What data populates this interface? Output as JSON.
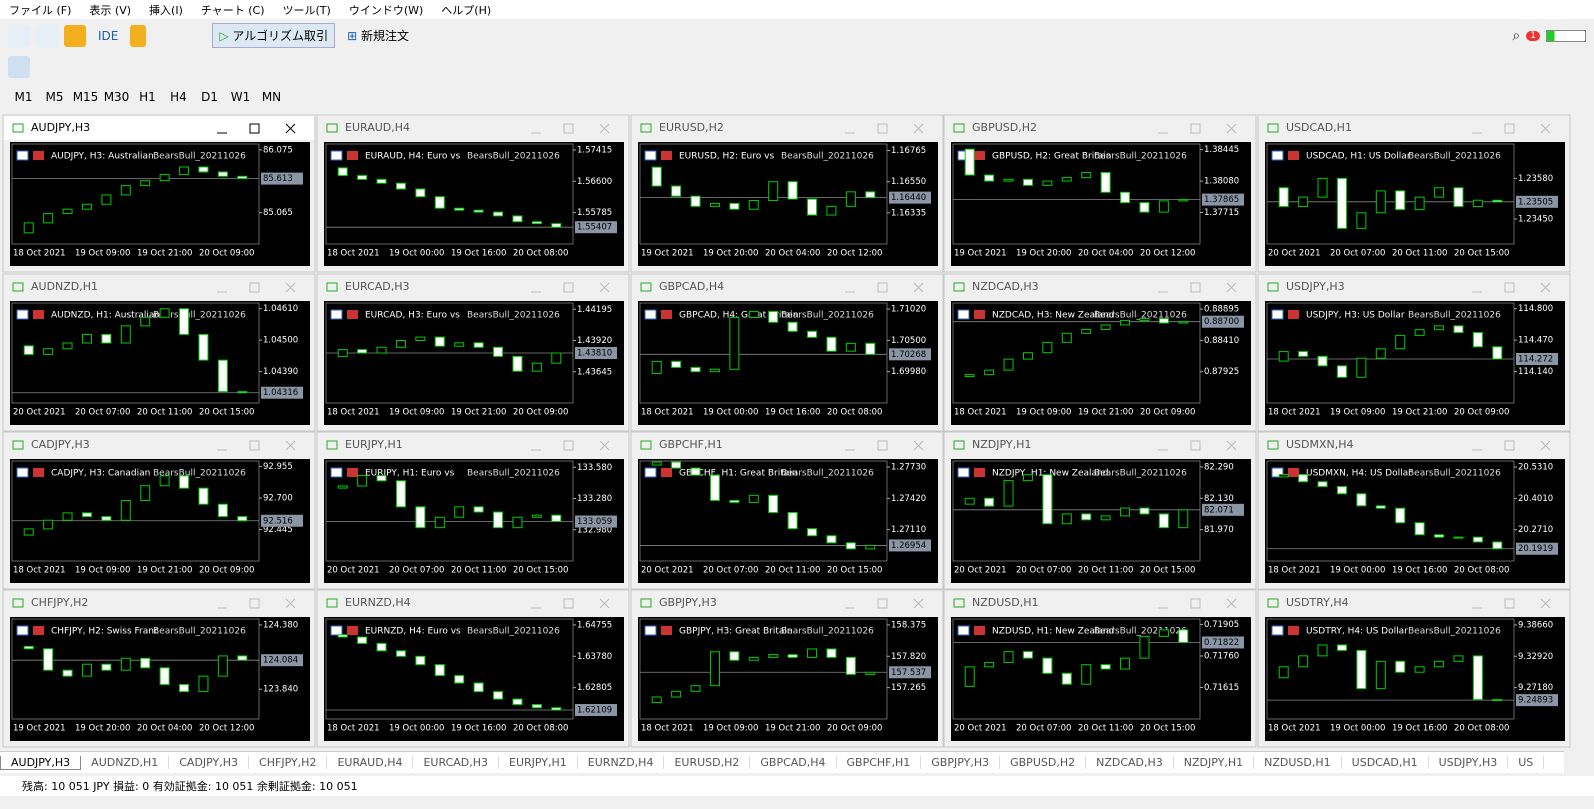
{
  "menu": [
    "ファイル (F)",
    "表示 (V)",
    "挿入(I)",
    "チャート (C)",
    "ツール(T)",
    "ウインドウ(W)",
    "ヘルプ(H)"
  ],
  "toolbar": {
    "ide": "IDE",
    "algo": "アルゴリズム取引",
    "order": "新規注文",
    "badge": "1"
  },
  "timeframes": [
    "M1",
    "M5",
    "M15",
    "M30",
    "H1",
    "H4",
    "D1",
    "W1",
    "MN"
  ],
  "indicator": "BearsBull_20211026",
  "windows": [
    {
      "title": "AUDJPY,H3",
      "desc": "AUDJPY, H3:  Australian",
      "ylim": [
        84.56,
        86.17
      ],
      "yticks": [
        86.075,
        85.065
      ],
      "price": 85.613,
      "xlabels": [
        "18 Oct 2021",
        "19 Oct 09:00",
        "19 Oct 21:00",
        "20 Oct 09:00"
      ],
      "values": [
        84.74,
        84.9,
        85.05,
        85.12,
        85.2,
        85.35,
        85.5,
        85.58,
        85.68,
        85.8,
        85.72,
        85.65,
        85.613
      ]
    },
    {
      "title": "EURAUD,H4",
      "desc": "EURAUD, H4:  Euro vs",
      "ylim": [
        1.5497,
        1.5757
      ],
      "yticks": [
        1.57415,
        {
          "value": 1.566,
          "label": "1.56600"
        },
        1.55785
      ],
      "price": 1.55407,
      "xlabels": [
        "18 Oct 2021",
        "19 Oct 00:00",
        "19 Oct 16:00",
        "20 Oct 08:00"
      ],
      "values": [
        1.5695,
        1.5675,
        1.5665,
        1.5655,
        1.564,
        1.562,
        1.559,
        1.5585,
        1.558,
        1.557,
        1.5555,
        1.555,
        1.55407
      ]
    },
    {
      "title": "EURUSD,H2",
      "desc": "EURUSD, H2:  Euro vs",
      "ylim": [
        1.1612,
        1.1681
      ],
      "yticks": [
        1.16765,
        {
          "value": 1.1655,
          "label": "1.16550"
        },
        1.16335
      ],
      "price": {
        "value": 1.1644,
        "label": "1.16440"
      },
      "xlabels": [
        "19 Oct 2021",
        "19 Oct 20:00",
        "20 Oct 04:00",
        "20 Oct 12:00"
      ],
      "values": [
        1.1665,
        1.1652,
        1.1645,
        1.1638,
        1.164,
        1.1636,
        1.1642,
        1.1655,
        1.1643,
        1.1632,
        1.1638,
        1.1648,
        1.1644
      ]
    },
    {
      "title": "GBPUSD,H2",
      "desc": "GBPUSD, H2:  Great Britain",
      "ylim": [
        1.3735,
        1.3851
      ],
      "yticks": [
        1.38445,
        {
          "value": 1.3808,
          "label": "1.38080"
        },
        1.37715
      ],
      "price": 1.37865,
      "xlabels": [
        "19 Oct 2021",
        "19 Oct 20:00",
        "20 Oct 04:00",
        "20 Oct 12:00"
      ],
      "values": [
        1.3845,
        1.3815,
        1.3808,
        1.381,
        1.3803,
        1.3808,
        1.3812,
        1.3818,
        1.3795,
        1.3783,
        1.3772,
        1.3785,
        1.37865
      ]
    },
    {
      "title": "USDCAD,H1",
      "desc": "USDCAD, H1:  US Dollar",
      "ylim": [
        1.2337,
        1.2369
      ],
      "yticks": [
        {
          "value": 1.2358,
          "label": "1.23580"
        },
        {
          "value": 1.2345,
          "label": "1.23450"
        }
      ],
      "price": 1.23505,
      "xlabels": [
        "20 Oct 2021",
        "20 Oct 07:00",
        "20 Oct 11:00",
        "20 Oct 15:00"
      ],
      "values": [
        1.2355,
        1.2349,
        1.2352,
        1.2358,
        1.2342,
        1.2347,
        1.2354,
        1.2348,
        1.2352,
        1.2355,
        1.2349,
        1.2351,
        1.23505
      ]
    },
    {
      "title": "AUDNZD,H1",
      "desc": "AUDNZD, H1:  Australian",
      "ylim": [
        1.0428,
        1.0463
      ],
      "yticks": [
        {
          "value": 1.0461,
          "label": "1.04610"
        },
        {
          "value": 1.045,
          "label": "1.04500"
        },
        {
          "value": 1.0439,
          "label": "1.04390"
        }
      ],
      "price": 1.04316,
      "xlabels": [
        "20 Oct 2021",
        "20 Oct 07:00",
        "20 Oct 11:00",
        "20 Oct 15:00"
      ],
      "values": [
        1.0448,
        1.0445,
        1.0447,
        1.0449,
        1.0452,
        1.0449,
        1.0455,
        1.0458,
        1.0461,
        1.0452,
        1.0443,
        1.0432,
        1.04316
      ]
    },
    {
      "title": "EURCAD,H3",
      "desc": "EURCAD, H3:  Euro vs",
      "ylim": [
        1.4337,
        1.4425
      ],
      "yticks": [
        1.44195,
        {
          "value": 1.4392,
          "label": "1.43920"
        },
        1.43645
      ],
      "price": {
        "value": 1.4381,
        "label": "1.43810"
      },
      "xlabels": [
        "18 Oct 2021",
        "19 Oct 09:00",
        "19 Oct 21:00",
        "20 Oct 09:00"
      ],
      "values": [
        1.4378,
        1.4384,
        1.4381,
        1.4386,
        1.4392,
        1.4395,
        1.4387,
        1.439,
        1.4386,
        1.4378,
        1.4365,
        1.4372,
        1.4381
      ]
    },
    {
      "title": "GBPCAD,H4",
      "desc": "GBPCAD, H4:  Great Britain",
      "ylim": [
        1.6946,
        1.7112
      ],
      "yticks": [
        {
          "value": 1.7102,
          "label": "1.71020"
        },
        {
          "value": 1.705,
          "label": "1.70500"
        },
        {
          "value": 1.6998,
          "label": "1.69980"
        }
      ],
      "price": 1.70268,
      "xlabels": [
        "18 Oct 2021",
        "19 Oct 00:00",
        "19 Oct 16:00",
        "20 Oct 08:00"
      ],
      "values": [
        1.6995,
        1.7015,
        1.7005,
        1.6998,
        1.7002,
        1.7088,
        1.7098,
        1.708,
        1.7065,
        1.7055,
        1.7032,
        1.7045,
        1.70268
      ]
    },
    {
      "title": "NZDCAD,H3",
      "desc": "NZDCAD, H3:  New Zealand",
      "ylim": [
        0.8744,
        0.8899
      ],
      "yticks": [
        0.88895,
        {
          "value": 0.8841,
          "label": "0.88410"
        },
        0.87925
      ],
      "price": {
        "value": 0.887,
        "label": "0.88700"
      },
      "xlabels": [
        "18 Oct 2021",
        "19 Oct 09:00",
        "19 Oct 21:00",
        "20 Oct 09:00"
      ],
      "values": [
        0.8785,
        0.8788,
        0.8795,
        0.8812,
        0.8822,
        0.8838,
        0.8852,
        0.8858,
        0.8865,
        0.8872,
        0.8875,
        0.8868,
        0.887
      ]
    },
    {
      "title": "USDJPY,H3",
      "desc": "USDJPY, H3:  US Dollar",
      "ylim": [
        113.81,
        114.86
      ],
      "yticks": [
        {
          "value": 114.8,
          "label": "114.800"
        },
        {
          "value": 114.47,
          "label": "114.470"
        },
        {
          "value": 114.14,
          "label": "114.140"
        }
      ],
      "price": 114.272,
      "xlabels": [
        "18 Oct 2021",
        "19 Oct 09:00",
        "19 Oct 21:00",
        "20 Oct 09:00"
      ],
      "values": [
        114.25,
        114.35,
        114.3,
        114.2,
        114.08,
        114.28,
        114.38,
        114.52,
        114.58,
        114.62,
        114.55,
        114.4,
        114.272
      ]
    },
    {
      "title": "CADJPY,H3",
      "desc": "CADJPY, H3:  Canadian",
      "ylim": [
        92.19,
        93.0
      ],
      "yticks": [
        92.955,
        {
          "value": 92.7,
          "label": "92.700"
        },
        92.445
      ],
      "price": 92.516,
      "xlabels": [
        "18 Oct 2021",
        "19 Oct 09:00",
        "19 Oct 21:00",
        "20 Oct 09:00"
      ],
      "values": [
        92.4,
        92.45,
        92.52,
        92.58,
        92.55,
        92.52,
        92.68,
        92.8,
        92.88,
        92.78,
        92.65,
        92.55,
        92.516
      ]
    },
    {
      "title": "EURJPY,H1",
      "desc": "EURJPY, H1:  Euro vs",
      "ylim": [
        132.68,
        133.64
      ],
      "yticks": [
        {
          "value": 133.58,
          "label": "133.580"
        },
        {
          "value": 133.28,
          "label": "133.280"
        },
        {
          "value": 132.98,
          "label": "132.980"
        }
      ],
      "price": 133.059,
      "xlabels": [
        "20 Oct 2021",
        "20 Oct 07:00",
        "20 Oct 11:00",
        "20 Oct 15:00"
      ],
      "values": [
        133.38,
        133.4,
        133.5,
        133.45,
        133.2,
        133.0,
        133.1,
        133.2,
        133.15,
        133.0,
        133.1,
        133.12,
        133.059
      ]
    },
    {
      "title": "GBPCHF,H1",
      "desc": "GBPCHF, H1:  Great Britain",
      "ylim": [
        1.268,
        1.2779
      ],
      "yticks": [
        {
          "value": 1.2773,
          "label": "1.27730"
        },
        {
          "value": 1.2742,
          "label": "1.27420"
        },
        {
          "value": 1.2711,
          "label": "1.27110"
        }
      ],
      "price": 1.26954,
      "xlabels": [
        "20 Oct 2021",
        "20 Oct 07:00",
        "20 Oct 11:00",
        "20 Oct 15:00"
      ],
      "values": [
        1.2775,
        1.2778,
        1.2772,
        1.2765,
        1.274,
        1.2738,
        1.2745,
        1.2728,
        1.2712,
        1.2705,
        1.2698,
        1.2692,
        1.26954
      ]
    },
    {
      "title": "NZDJPY,H1",
      "desc": "NZDJPY, H1:  New Zealand",
      "ylim": [
        81.81,
        82.32
      ],
      "yticks": [
        {
          "value": 82.29,
          "label": "82.290"
        },
        {
          "value": 82.13,
          "label": "82.130"
        },
        {
          "value": 81.97,
          "label": "81.970"
        }
      ],
      "price": 82.071,
      "xlabels": [
        "20 Oct 2021",
        "20 Oct 07:00",
        "20 Oct 11:00",
        "20 Oct 15:00"
      ],
      "values": [
        82.1,
        82.13,
        82.09,
        82.22,
        82.25,
        82.0,
        82.05,
        82.02,
        82.04,
        82.08,
        82.05,
        81.98,
        82.071
      ]
    },
    {
      "title": "USDMXN,H4",
      "desc": "USDMXN, H4:  US Dollar",
      "ylim": [
        20.141,
        20.556
      ],
      "yticks": [
        {
          "value": 20.531,
          "label": "20.5310"
        },
        {
          "value": 20.401,
          "label": "20.4010"
        },
        {
          "value": 20.271,
          "label": "20.2710"
        }
      ],
      "price": 20.1919,
      "xlabels": [
        "18 Oct 2021",
        "19 Oct 00:00",
        "19 Oct 16:00",
        "20 Oct 08:00"
      ],
      "values": [
        20.49,
        20.5,
        20.47,
        20.45,
        20.42,
        20.37,
        20.36,
        20.3,
        20.25,
        20.24,
        20.24,
        20.22,
        20.1919
      ]
    },
    {
      "title": "CHFJPY,H2",
      "desc": "CHFJPY, H2:  Swiss Franc",
      "ylim": [
        123.59,
        124.43
      ],
      "yticks": [
        {
          "value": 124.38,
          "label": "124.380"
        },
        {
          "value": 123.84,
          "label": "123.840"
        }
      ],
      "price": 124.084,
      "xlabels": [
        "19 Oct 2021",
        "19 Oct 20:00",
        "20 Oct 04:00",
        "20 Oct 12:00"
      ],
      "values": [
        124.2,
        124.18,
        124.0,
        123.95,
        124.05,
        124.0,
        124.1,
        124.02,
        123.88,
        123.82,
        123.95,
        124.12,
        124.084
      ]
    },
    {
      "title": "EURNZD,H4",
      "desc": "EURNZD, H4:  Euro vs",
      "ylim": [
        1.6183,
        1.6494
      ],
      "yticks": [
        1.64755,
        {
          "value": 1.6378,
          "label": "1.63780"
        },
        1.62805
      ],
      "price": 1.62109,
      "xlabels": [
        "18 Oct 2021",
        "19 Oct 00:00",
        "19 Oct 16:00",
        "20 Oct 08:00"
      ],
      "values": [
        1.6445,
        1.6438,
        1.6418,
        1.6395,
        1.6378,
        1.6352,
        1.6318,
        1.6295,
        1.6268,
        1.6245,
        1.6228,
        1.6218,
        1.62109
      ]
    },
    {
      "title": "GBPJPY,H3",
      "desc": "GBPJPY, H3:  Great Britain",
      "ylim": [
        156.71,
        158.48
      ],
      "yticks": [
        158.375,
        {
          "value": 157.82,
          "label": "157.820"
        },
        157.265
      ],
      "price": 157.537,
      "xlabels": [
        "18 Oct 2021",
        "19 Oct 09:00",
        "19 Oct 21:00",
        "20 Oct 09:00"
      ],
      "values": [
        157.0,
        157.1,
        157.2,
        157.3,
        157.9,
        157.75,
        157.8,
        157.85,
        157.8,
        157.95,
        157.8,
        157.5,
        157.537
      ]
    },
    {
      "title": "NZDUSD,H1",
      "desc": "NZDUSD, H1:  New Zealand",
      "ylim": [
        0.7147,
        0.7193
      ],
      "yticks": [
        0.71905,
        {
          "value": 0.7176,
          "label": "0.71760"
        },
        0.71615
      ],
      "price": 0.71822,
      "xlabels": [
        "20 Oct 2021",
        "20 Oct 07:00",
        "20 Oct 11:00",
        "20 Oct 15:00"
      ],
      "values": [
        0.7162,
        0.7171,
        0.7173,
        0.7178,
        0.7175,
        0.7168,
        0.7163,
        0.7172,
        0.717,
        0.7175,
        0.7185,
        0.7188,
        0.71822
      ]
    },
    {
      "title": "USDTRY,H4",
      "desc": "USDTRY, H4:  US Dollar",
      "ylim": [
        9.2144,
        9.3975
      ],
      "yticks": [
        {
          "value": 9.3866,
          "label": "9.38660"
        },
        {
          "value": 9.3292,
          "label": "9.32920"
        },
        {
          "value": 9.2718,
          "label": "9.27180"
        }
      ],
      "price": 9.24893,
      "xlabels": [
        "18 Oct 2021",
        "19 Oct 00:00",
        "19 Oct 16:00",
        "20 Oct 08:00"
      ],
      "values": [
        9.29,
        9.31,
        9.33,
        9.35,
        9.34,
        9.27,
        9.32,
        9.3,
        9.31,
        9.32,
        9.33,
        9.25,
        9.24893
      ]
    }
  ],
  "tabs": [
    "AUDJPY,H3",
    "AUDNZD,H1",
    "CADJPY,H3",
    "CHFJPY,H2",
    "EURAUD,H4",
    "EURCAD,H3",
    "EURJPY,H1",
    "EURNZD,H4",
    "EURUSD,H2",
    "GBPCAD,H4",
    "GBPCHF,H1",
    "GBPJPY,H3",
    "GBPUSD,H2",
    "NZDCAD,H3",
    "NZDJPY,H1",
    "NZDUSD,H1",
    "USDCAD,H1",
    "USDJPY,H3",
    "US"
  ],
  "status": "残高: 10 051 JPY  損益: 0  有効証拠金: 10 051  余剰証拠金: 10 051"
}
